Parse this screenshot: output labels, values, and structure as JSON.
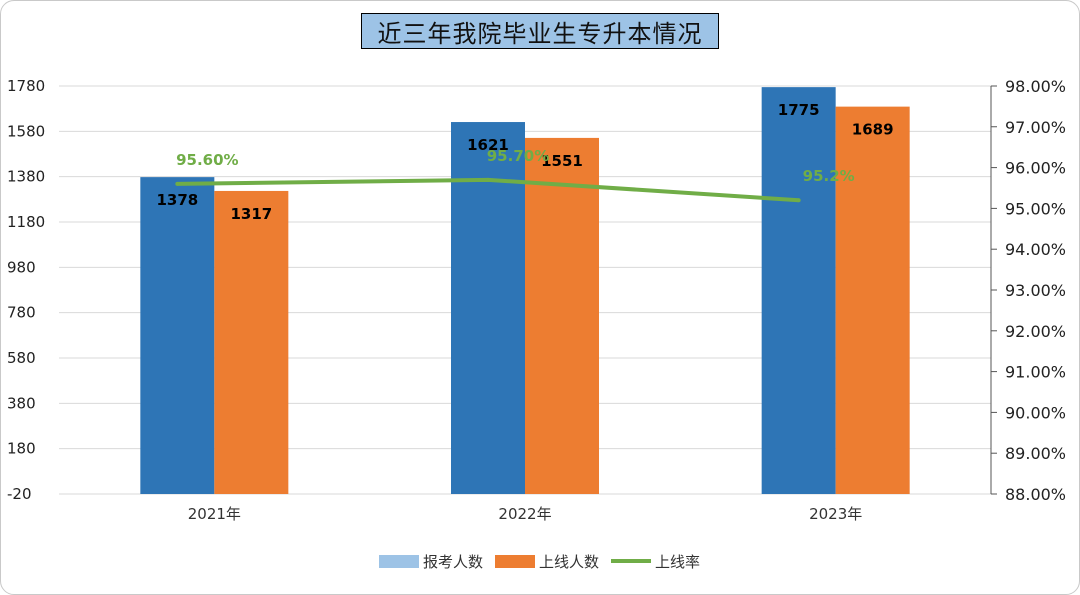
{
  "chart_data": {
    "type": "bar",
    "title": "近三年我院毕业生专升本情况",
    "categories": [
      "2021年",
      "2022年",
      "2023年"
    ],
    "series": [
      {
        "name": "报考人数",
        "type": "bar",
        "axis": "left",
        "values": [
          1378,
          1621,
          1775
        ],
        "labels": [
          "1378",
          "1621",
          "1775"
        ]
      },
      {
        "name": "上线人数",
        "type": "bar",
        "axis": "left",
        "values": [
          1317,
          1551,
          1689
        ],
        "labels": [
          "1317",
          "1551",
          "1689"
        ]
      },
      {
        "name": "上线率",
        "type": "line",
        "axis": "right",
        "values": [
          95.6,
          95.7,
          95.2
        ],
        "labels": [
          "95.60%",
          "95.70%",
          "95.2%"
        ]
      }
    ],
    "y_left": {
      "min": -20,
      "max": 1780,
      "ticks": [
        "1780",
        "1580",
        "1380",
        "1180",
        "980",
        "780",
        "580",
        "380",
        "180",
        "-20"
      ]
    },
    "y_right": {
      "min": 88,
      "max": 98,
      "ticks": [
        "98.00%",
        "97.00%",
        "96.00%",
        "95.00%",
        "94.00%",
        "93.00%",
        "92.00%",
        "91.00%",
        "90.00%",
        "89.00%",
        "88.00%"
      ]
    },
    "legend_position": "bottom",
    "grid": true,
    "colors": {
      "bar1": "#2e75b6",
      "bar2": "#ed7d31",
      "line": "#70ad47",
      "legend_bar1": "#9dc3e6",
      "title_bg": "#9dc3e6"
    }
  }
}
